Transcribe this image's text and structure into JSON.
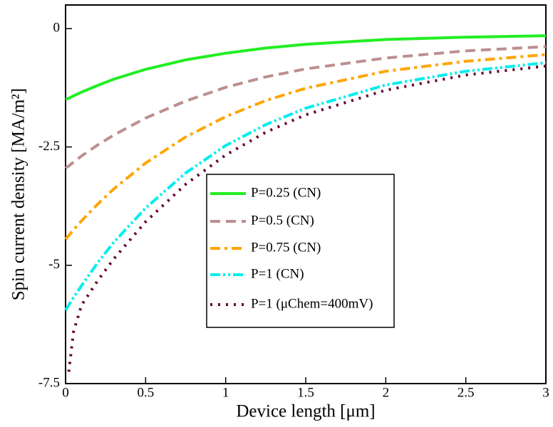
{
  "chart_data": {
    "type": "line",
    "x_label": "Device length [μm]",
    "y_label": "Spin current density [MA/m²]",
    "x": [
      0,
      0.02,
      0.05,
      0.1,
      0.2,
      0.3,
      0.5,
      0.75,
      1,
      1.25,
      1.5,
      2,
      2.5,
      3
    ],
    "series": [
      {
        "name": "P=0.25 (CN)",
        "color": "#22ee22",
        "values": [
          -1.5,
          -1.47,
          -1.42,
          -1.34,
          -1.2,
          -1.07,
          -0.86,
          -0.66,
          -0.52,
          -0.41,
          -0.33,
          -0.23,
          -0.18,
          -0.15
        ]
      },
      {
        "name": "P=0.5 (CN)",
        "color": "#bc8f8f",
        "values": [
          -2.95,
          -2.9,
          -2.82,
          -2.69,
          -2.46,
          -2.25,
          -1.89,
          -1.53,
          -1.24,
          -1.02,
          -0.85,
          -0.62,
          -0.47,
          -0.38
        ]
      },
      {
        "name": "P=0.75 (CN)",
        "color": "#ffa500",
        "values": [
          -4.45,
          -4.37,
          -4.25,
          -4.06,
          -3.71,
          -3.39,
          -2.84,
          -2.29,
          -1.86,
          -1.52,
          -1.26,
          -0.9,
          -0.69,
          -0.55
        ]
      },
      {
        "name": "P=1 (CN)",
        "color": "#00eeee",
        "values": [
          -5.95,
          -5.84,
          -5.68,
          -5.43,
          -4.95,
          -4.52,
          -3.79,
          -3.05,
          -2.47,
          -2.03,
          -1.68,
          -1.19,
          -0.9,
          -0.72
        ]
      },
      {
        "name": "P=1 (μChem=400mV)",
        "color": "#660033",
        "values": [
          null,
          -7.25,
          -6.4,
          -5.84,
          -5.33,
          -4.87,
          -4.08,
          -3.29,
          -2.67,
          -2.19,
          -1.82,
          -1.3,
          -0.98,
          -0.79
        ]
      }
    ],
    "xlim": [
      0,
      3
    ],
    "xticks": [
      0,
      0.5,
      1,
      1.5,
      2,
      2.5,
      3
    ],
    "ylim": [
      -7.5,
      0.5
    ],
    "yticks": [
      0,
      -2.5,
      -5,
      -7.5
    ],
    "grid": false
  }
}
